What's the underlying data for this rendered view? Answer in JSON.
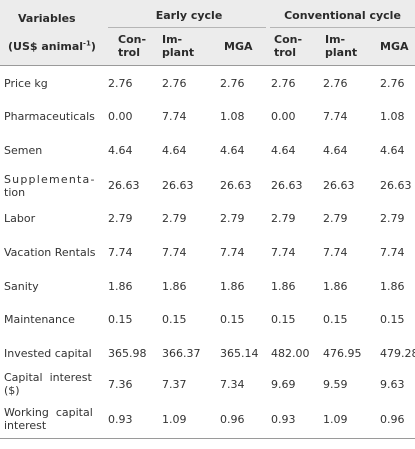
{
  "header": {
    "variables": "Variables",
    "units": "(US$ animal",
    "units_sup": "-1",
    "units_close": ")",
    "group_early": "Early cycle",
    "group_conv": "Conventional cycle",
    "cols": {
      "e_control_1": "Con-",
      "e_control_2": "trol",
      "e_implant_1": "Im-",
      "e_implant_2": "plant",
      "e_mga": "MGA",
      "c_control_1": "Con-",
      "c_control_2": "trol",
      "c_implant_1": "Im-",
      "c_implant_2": "plant",
      "c_mga": "MGA"
    }
  },
  "rows": [
    {
      "label": "Price kg",
      "values": [
        "2.76",
        "2.76",
        "2.76",
        "2.76",
        "2.76",
        "2.76"
      ]
    },
    {
      "label": "Pharmaceuticals",
      "values": [
        "0.00",
        "7.74",
        "1.08",
        "0.00",
        "7.74",
        "1.08"
      ]
    },
    {
      "label": "Semen",
      "values": [
        "4.64",
        "4.64",
        "4.64",
        "4.64",
        "4.64",
        "4.64"
      ]
    },
    {
      "label": "Supplementa-tion",
      "label_1": "Supplementa-",
      "label_2": "tion",
      "values": [
        "26.63",
        "26.63",
        "26.63",
        "26.63",
        "26.63",
        "26.63"
      ]
    },
    {
      "label": "Labor",
      "values": [
        "2.79",
        "2.79",
        "2.79",
        "2.79",
        "2.79",
        "2.79"
      ]
    },
    {
      "label": "Vacation Rentals",
      "values": [
        "7.74",
        "7.74",
        "7.74",
        "7.74",
        "7.74",
        "7.74"
      ]
    },
    {
      "label": "Sanity",
      "values": [
        "1.86",
        "1.86",
        "1.86",
        "1.86",
        "1.86",
        "1.86"
      ]
    },
    {
      "label": "Maintenance",
      "values": [
        "0.15",
        "0.15",
        "0.15",
        "0.15",
        "0.15",
        "0.15"
      ]
    },
    {
      "label": "Invested capital",
      "values": [
        "365.98",
        "366.37",
        "365.14",
        "482.00",
        "476.95",
        "479.28"
      ]
    },
    {
      "label": "Capital interest ($)",
      "label_1": "Capital  interest",
      "label_2": "($)",
      "values": [
        "7.36",
        "7.37",
        "7.34",
        "9.69",
        "9.59",
        "9.63"
      ]
    },
    {
      "label": "Working capital interest",
      "label_1": "Working  capital",
      "label_2": "interest",
      "values": [
        "0.93",
        "1.09",
        "0.96",
        "0.93",
        "1.09",
        "0.96"
      ]
    }
  ]
}
